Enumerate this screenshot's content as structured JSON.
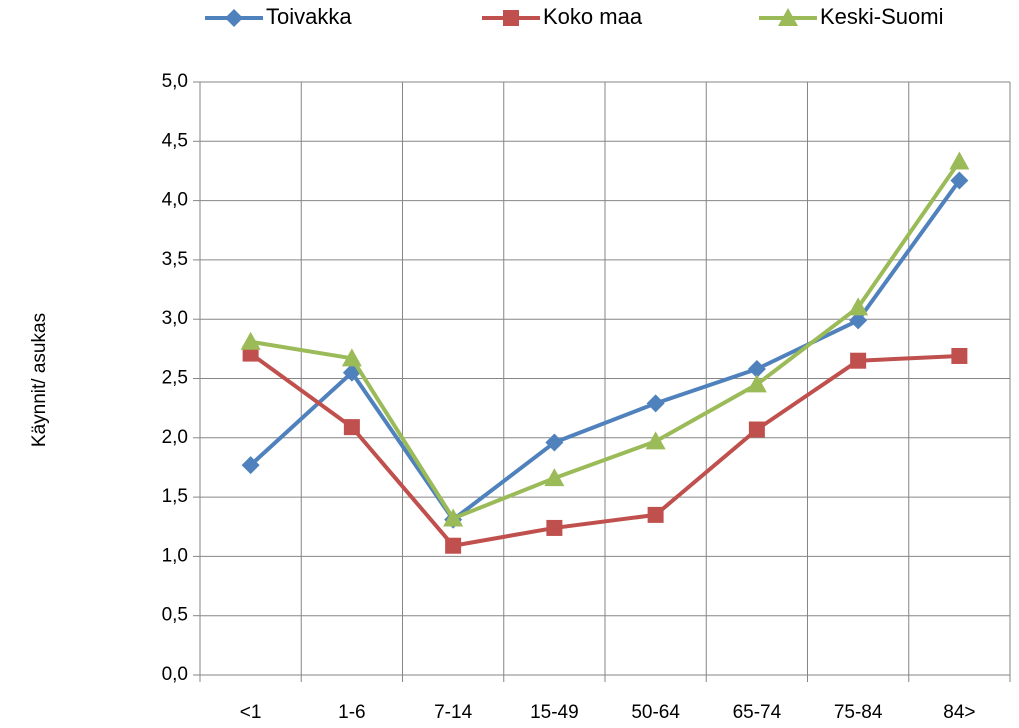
{
  "chart_data": {
    "type": "line",
    "y_label": "Käynnit/ asukas",
    "categories": [
      "<1",
      "1-6",
      "7-14",
      "15-49",
      "50-64",
      "65-74",
      "75-84",
      "84>"
    ],
    "series": [
      {
        "name": "Toivakka",
        "color": "#4f81bd",
        "marker": "diamond",
        "values": [
          1.77,
          2.55,
          1.31,
          1.96,
          2.29,
          2.58,
          2.99,
          4.17
        ]
      },
      {
        "name": "Koko maa",
        "color": "#c0504d",
        "marker": "square",
        "values": [
          2.71,
          2.09,
          1.09,
          1.24,
          1.35,
          2.07,
          2.65,
          2.69
        ]
      },
      {
        "name": "Keski-Suomi",
        "color": "#9bbb59",
        "marker": "triangle",
        "values": [
          2.81,
          2.67,
          1.32,
          1.66,
          1.97,
          2.45,
          3.1,
          4.33
        ]
      }
    ],
    "ylim": [
      0,
      5
    ],
    "yticks": [
      {
        "value": 0,
        "label": "0,0"
      },
      {
        "value": 0.5,
        "label": "0,5"
      },
      {
        "value": 1,
        "label": "1,0"
      },
      {
        "value": 1.5,
        "label": "1,5"
      },
      {
        "value": 2,
        "label": "2,0"
      },
      {
        "value": 2.5,
        "label": "2,5"
      },
      {
        "value": 3,
        "label": "3,0"
      },
      {
        "value": 3.5,
        "label": "3,5"
      },
      {
        "value": 4,
        "label": "4,0"
      },
      {
        "value": 4.5,
        "label": "4,5"
      },
      {
        "value": 5,
        "label": "5,0"
      }
    ],
    "grid": true,
    "legend": "top"
  }
}
